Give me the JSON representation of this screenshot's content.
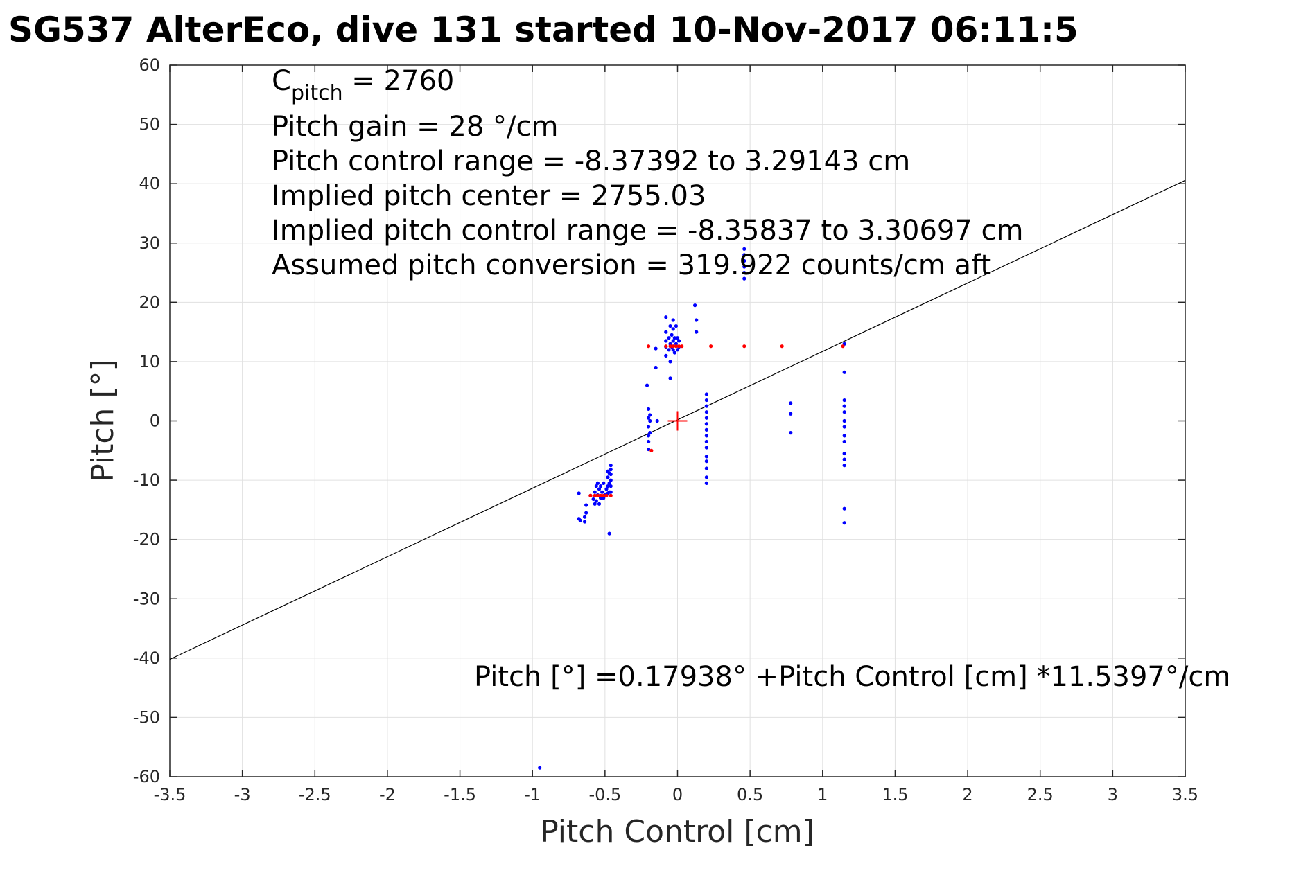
{
  "chart_data": {
    "type": "scatter",
    "title": "SG537 AlterEco, dive 131 started 10-Nov-2017 06:11:5",
    "xlabel": "Pitch Control [cm]",
    "ylabel": "Pitch [°]",
    "xlim": [
      -3.5,
      3.5
    ],
    "ylim": [
      -60,
      60
    ],
    "xticks": [
      -3.5,
      -3,
      -2.5,
      -2,
      -1.5,
      -1,
      -0.5,
      0,
      0.5,
      1,
      1.5,
      2,
      2.5,
      3,
      3.5
    ],
    "xtick_labels": [
      "-3.5",
      "-3",
      "-2.5",
      "-2",
      "-1.5",
      "-1",
      "-0.5",
      "0",
      "0.5",
      "1",
      "1.5",
      "2",
      "2.5",
      "3",
      "3.5"
    ],
    "yticks": [
      60,
      50,
      40,
      30,
      20,
      10,
      0,
      -10,
      -20,
      -30,
      -40,
      -50,
      -60
    ],
    "ytick_labels": [
      "60",
      "50",
      "40",
      "30",
      "20",
      "10",
      "0",
      "-10",
      "-20",
      "-30",
      "-40",
      "-50",
      "-60"
    ],
    "grid": true,
    "annotations": {
      "cpitch_main": "C",
      "cpitch_sub": "pitch",
      "cpitch_value": " = 2760",
      "gain": "Pitch gain = 28 °/cm",
      "range": "Pitch control range = -8.37392 to 3.29143 cm",
      "center": "Implied pitch center = 2755.03",
      "implied_range": "Implied pitch control range = -8.35837 to 3.30697 cm",
      "conversion": "Assumed pitch conversion = 319.922 counts/cm aft",
      "fit_equation": "Pitch [°] =0.17938° +Pitch Control [cm] *11.5397°/cm"
    },
    "fit_line": {
      "intercept": 0.17938,
      "slope": 11.5397
    },
    "center_marker": {
      "x": 0,
      "y": 0
    },
    "series": [
      {
        "color": "#0000ff",
        "points": [
          [
            -0.95,
            -58.5
          ],
          [
            -0.68,
            -12.2
          ],
          [
            -0.68,
            -16.5
          ],
          [
            -0.67,
            -16.8
          ],
          [
            -0.64,
            -17.0
          ],
          [
            -0.64,
            -16.2
          ],
          [
            -0.63,
            -15.5
          ],
          [
            -0.63,
            -14.2
          ],
          [
            -0.6,
            -12.6
          ],
          [
            -0.58,
            -13.2
          ],
          [
            -0.57,
            -12.0
          ],
          [
            -0.57,
            -14.0
          ],
          [
            -0.56,
            -11.0
          ],
          [
            -0.56,
            -13.5
          ],
          [
            -0.55,
            -10.5
          ],
          [
            -0.55,
            -12.5
          ],
          [
            -0.54,
            -11.5
          ],
          [
            -0.54,
            -14.0
          ],
          [
            -0.53,
            -11.0
          ],
          [
            -0.53,
            -13.0
          ],
          [
            -0.52,
            -12.0
          ],
          [
            -0.51,
            -10.5
          ],
          [
            -0.51,
            -13.0
          ],
          [
            -0.5,
            -12.5
          ],
          [
            -0.49,
            -11.5
          ],
          [
            -0.48,
            -8.5
          ],
          [
            -0.48,
            -9.5
          ],
          [
            -0.48,
            -11.0
          ],
          [
            -0.48,
            -12.2
          ],
          [
            -0.47,
            -8.8
          ],
          [
            -0.47,
            -10.5
          ],
          [
            -0.47,
            -12.0
          ],
          [
            -0.47,
            -19.0
          ],
          [
            -0.46,
            -7.5
          ],
          [
            -0.46,
            -8.2
          ],
          [
            -0.46,
            -9.0
          ],
          [
            -0.46,
            -10.0
          ],
          [
            -0.46,
            -11.0
          ],
          [
            -0.46,
            -12.0
          ],
          [
            -0.21,
            6.0
          ],
          [
            -0.2,
            2.0
          ],
          [
            -0.2,
            0.5
          ],
          [
            -0.2,
            -1.0
          ],
          [
            -0.2,
            -2.5
          ],
          [
            -0.2,
            -3.5
          ],
          [
            -0.2,
            -4.8
          ],
          [
            -0.19,
            1.0
          ],
          [
            -0.19,
            0.0
          ],
          [
            -0.19,
            -2.0
          ],
          [
            -0.15,
            12.2
          ],
          [
            -0.15,
            9.0
          ],
          [
            -0.14,
            0.0
          ],
          [
            -0.08,
            17.5
          ],
          [
            -0.08,
            15.0
          ],
          [
            -0.08,
            13.5
          ],
          [
            -0.08,
            12.5
          ],
          [
            -0.08,
            11.0
          ],
          [
            -0.06,
            14.0
          ],
          [
            -0.06,
            12.0
          ],
          [
            -0.05,
            16.0
          ],
          [
            -0.05,
            13.0
          ],
          [
            -0.05,
            10.0
          ],
          [
            -0.05,
            7.2
          ],
          [
            -0.04,
            14.5
          ],
          [
            -0.04,
            12.5
          ],
          [
            -0.03,
            17.0
          ],
          [
            -0.03,
            15.5
          ],
          [
            -0.03,
            13.5
          ],
          [
            -0.03,
            12.0
          ],
          [
            -0.02,
            14.0
          ],
          [
            -0.02,
            11.5
          ],
          [
            -0.01,
            16.0
          ],
          [
            -0.01,
            13.0
          ],
          [
            0.0,
            14.0
          ],
          [
            0.0,
            12.0
          ],
          [
            0.01,
            13.5
          ],
          [
            0.01,
            12.5
          ],
          [
            0.12,
            19.5
          ],
          [
            0.13,
            17.0
          ],
          [
            0.13,
            15.0
          ],
          [
            0.2,
            4.5
          ],
          [
            0.2,
            3.5
          ],
          [
            0.2,
            2.5
          ],
          [
            0.2,
            1.5
          ],
          [
            0.2,
            0.5
          ],
          [
            0.2,
            -0.5
          ],
          [
            0.2,
            -1.5
          ],
          [
            0.2,
            -2.5
          ],
          [
            0.2,
            -3.5
          ],
          [
            0.2,
            -4.5
          ],
          [
            0.2,
            -6.0
          ],
          [
            0.2,
            -6.8
          ],
          [
            0.2,
            -8.0
          ],
          [
            0.2,
            -9.5
          ],
          [
            0.2,
            -10.5
          ],
          [
            0.46,
            29.0
          ],
          [
            0.46,
            28.0
          ],
          [
            0.46,
            27.0
          ],
          [
            0.46,
            26.0
          ],
          [
            0.46,
            25.0
          ],
          [
            0.46,
            24.0
          ],
          [
            0.78,
            3.0
          ],
          [
            0.78,
            1.2
          ],
          [
            0.78,
            -2.0
          ],
          [
            1.15,
            13.0
          ],
          [
            1.15,
            8.2
          ],
          [
            1.15,
            3.5
          ],
          [
            1.15,
            2.5
          ],
          [
            1.15,
            1.5
          ],
          [
            1.15,
            0.0
          ],
          [
            1.15,
            -1.0
          ],
          [
            1.15,
            -2.5
          ],
          [
            1.15,
            -3.5
          ],
          [
            1.15,
            -5.5
          ],
          [
            1.15,
            -6.5
          ],
          [
            1.15,
            -7.5
          ],
          [
            1.15,
            -14.8
          ],
          [
            1.15,
            -17.2
          ]
        ]
      },
      {
        "color": "#ff0000",
        "points": [
          [
            -0.6,
            -12.6
          ],
          [
            -0.57,
            -12.6
          ],
          [
            -0.55,
            -12.6
          ],
          [
            -0.53,
            -12.6
          ],
          [
            -0.51,
            -12.6
          ],
          [
            -0.49,
            -12.6
          ],
          [
            -0.46,
            -12.6
          ],
          [
            -0.2,
            12.6
          ],
          [
            -0.18,
            -5.0
          ],
          [
            -0.08,
            12.6
          ],
          [
            -0.05,
            12.6
          ],
          [
            -0.03,
            12.6
          ],
          [
            -0.01,
            12.6
          ],
          [
            0.01,
            12.6
          ],
          [
            0.03,
            12.6
          ],
          [
            0.23,
            12.6
          ],
          [
            0.46,
            12.6
          ],
          [
            0.72,
            12.6
          ],
          [
            1.14,
            12.6
          ]
        ]
      }
    ]
  }
}
